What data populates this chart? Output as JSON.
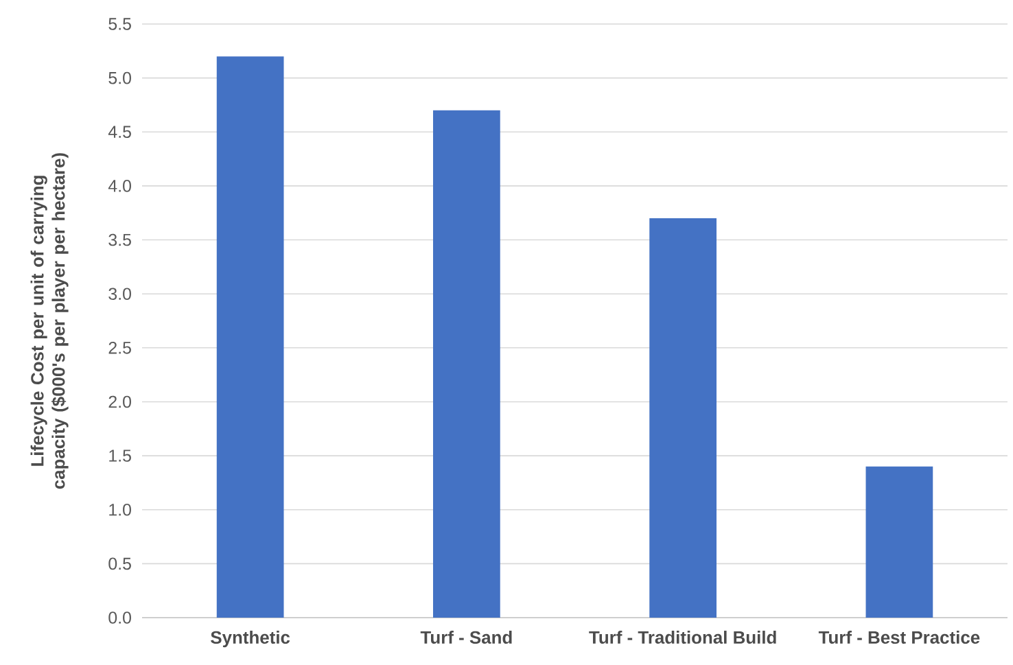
{
  "chart_data": {
    "type": "bar",
    "ylabel": "Lifecycle Cost per unit of carrying capacity ($000's per player per hectare)",
    "categories": [
      "Synthetic",
      "Turf - Sand",
      "Turf - Traditional Build",
      "Turf - Best Practice"
    ],
    "values": [
      5.2,
      4.7,
      3.7,
      1.4
    ],
    "color": "#4472c4",
    "ylim": [
      0,
      5.5
    ],
    "yticks": [
      {
        "value": 0,
        "label": "0.0"
      },
      {
        "value": 0.5,
        "label": "0.5"
      },
      {
        "value": 1,
        "label": "1.0"
      },
      {
        "value": 1.5,
        "label": "1.5"
      },
      {
        "value": 2,
        "label": "2.0"
      },
      {
        "value": 2.5,
        "label": "2.5"
      },
      {
        "value": 3,
        "label": "3.0"
      },
      {
        "value": 3.5,
        "label": "3.5"
      },
      {
        "value": 4,
        "label": "4.0"
      },
      {
        "value": 4.5,
        "label": "4.5"
      },
      {
        "value": 5,
        "label": "5.0"
      },
      {
        "value": 5.5,
        "label": "5.5"
      }
    ],
    "grid": "y"
  }
}
